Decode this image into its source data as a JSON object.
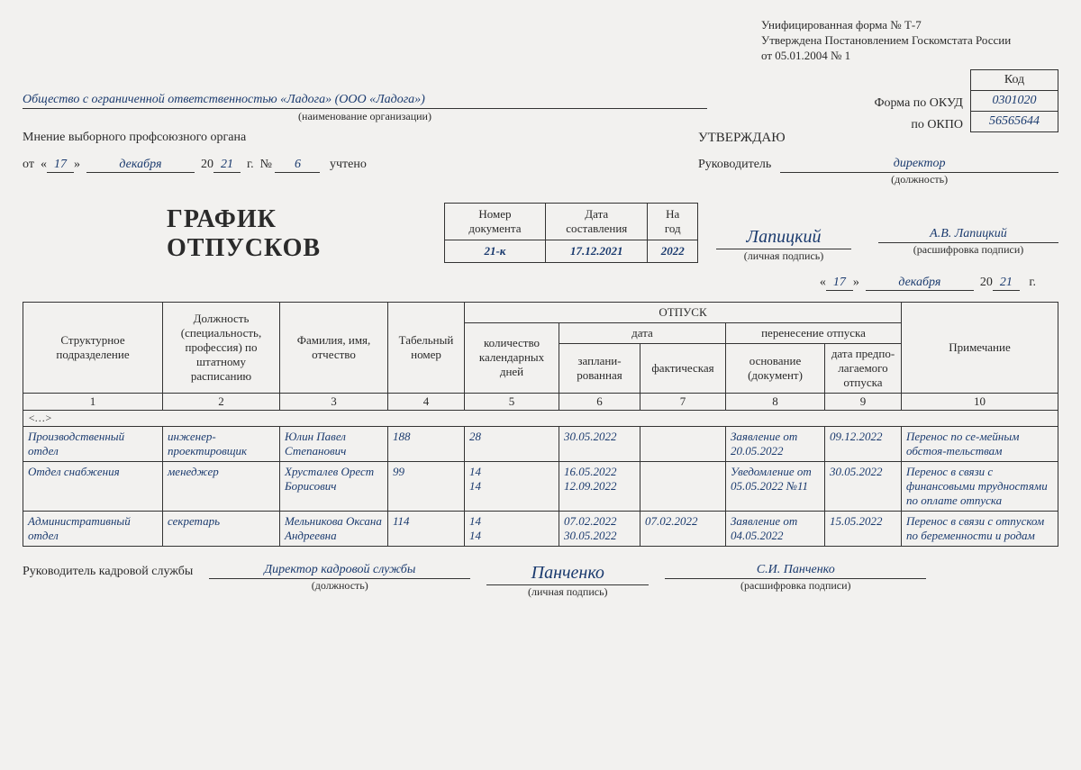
{
  "header_note": {
    "line1": "Унифицированная форма № Т-7",
    "line2": "Утверждена Постановлением Госкомстата России",
    "line3": "от 05.01.2004 № 1"
  },
  "codes": {
    "header": "Код",
    "okud_label": "Форма по ОКУД",
    "okud_value": "0301020",
    "okpo_label": "по ОКПО",
    "okpo_value": "56565644"
  },
  "org": {
    "name": "Общество с ограниченной ответственностью «Ладога» (ООО «Ладога»)",
    "sublabel": "(наименование организации)"
  },
  "opinion": {
    "title": "Мнение выборного профсоюзного органа",
    "from": "от",
    "day": "17",
    "month": "декабря",
    "year_prefix": "20",
    "year": "21",
    "g": "г.",
    "num_label": "№",
    "num": "6",
    "accounted": "учтено"
  },
  "approve": {
    "title": "УТВЕРЖДАЮ",
    "head_label": "Руководитель",
    "position": "директор",
    "position_sub": "(должность)",
    "signature": "Лапицкий",
    "sig_sub": "(личная подпись)",
    "name": "А.В. Лапицкий",
    "name_sub": "(расшифровка подписи)",
    "day": "17",
    "month": "декабря",
    "year_prefix": "20",
    "year": "21",
    "g": "г."
  },
  "title": "ГРАФИК ОТПУСКОВ",
  "doc_meta": {
    "h1": "Номер документа",
    "h2": "Дата составления",
    "h3": "На год",
    "v1": "21-к",
    "v2": "17.12.2021",
    "v3": "2022"
  },
  "table": {
    "h_otpusk": "ОТПУСК",
    "h_date": "дата",
    "h_transfer": "перенесение отпуска",
    "h1": "Структурное подразделение",
    "h2": "Должность (специальность, профессия) по штатному расписанию",
    "h3": "Фамилия, имя, отчество",
    "h4": "Табельный номер",
    "h5": "количество календарных дней",
    "h6": "заплани-рованная",
    "h7": "фактическая",
    "h8": "основание (документ)",
    "h9": "дата предпо-лагаемого отпуска",
    "h10": "Примечание",
    "ellipsis": "<…>",
    "rows": [
      {
        "c1": "Производственный отдел",
        "c2": "инженер-проектировщик",
        "c3": "Юлин Павел Степанович",
        "c4": "188",
        "c5": "28",
        "c6": "30.05.2022",
        "c7": "",
        "c8": "Заявление от 20.05.2022",
        "c9": "09.12.2022",
        "c10": "Перенос по се-мейным обстоя-тельствам"
      },
      {
        "c1": "Отдел снабжения",
        "c2": "менеджер",
        "c3": "Хрусталев Орест Борисович",
        "c4": "99",
        "c5": "14\n14",
        "c6": "16.05.2022\n12.09.2022",
        "c7": "",
        "c8": "Уведомление от 05.05.2022 №11",
        "c9": "30.05.2022",
        "c10": "Перенос в связи с финансовыми трудностями по оплате отпуска"
      },
      {
        "c1": "Административный отдел",
        "c2": "секретарь",
        "c3": "Мельникова Оксана Андреевна",
        "c4": "114",
        "c5": "14\n14",
        "c6": "07.02.2022\n30.05.2022",
        "c7": "07.02.2022",
        "c8": "Заявление от 04.05.2022",
        "c9": "15.05.2022",
        "c10": "Перенос в связи с отпуском по беременности и родам"
      }
    ]
  },
  "footer": {
    "label": "Руководитель кадровой службы",
    "position": "Директор кадровой службы",
    "position_sub": "(должность)",
    "signature": "Панченко",
    "sig_sub": "(личная подпись)",
    "name": "С.И. Панченко",
    "name_sub": "(расшифровка подписи)"
  }
}
